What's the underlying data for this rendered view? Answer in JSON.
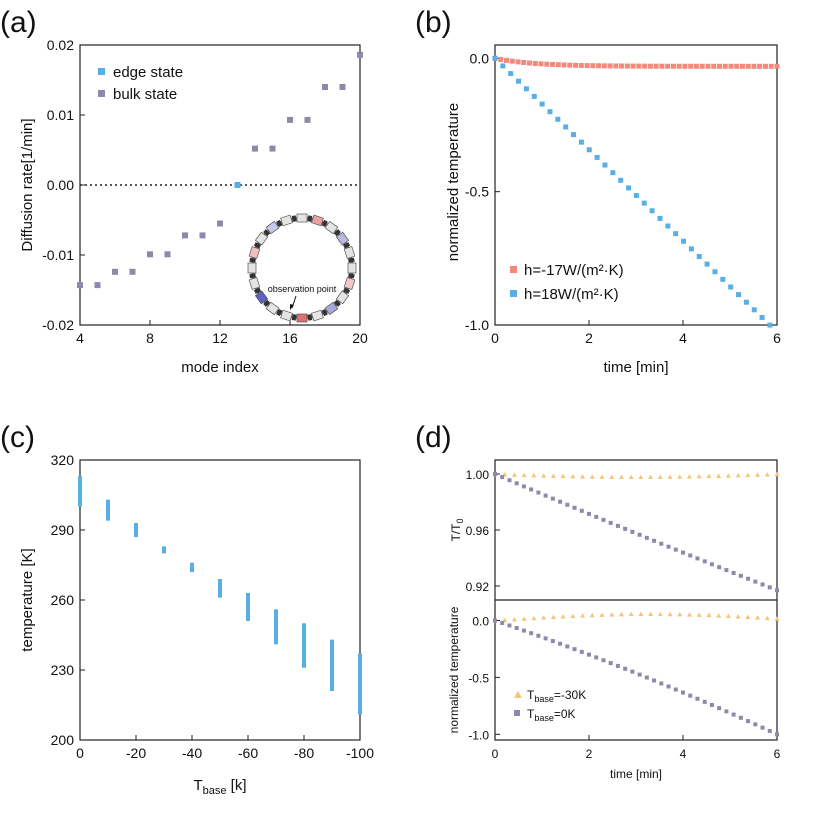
{
  "colors": {
    "blue": "#5aaee6",
    "purple": "#8e88ab",
    "salmon": "#f08a7d",
    "orange": "#f5c67a",
    "axis": "#222222"
  },
  "panels": {
    "a": "(a)",
    "b": "(b)",
    "c": "(c)",
    "d": "(d)"
  },
  "chart_data": [
    {
      "id": "a",
      "type": "scatter",
      "xlabel": "mode index",
      "ylabel": "Diffusion rate[1/min]",
      "xlim": [
        4,
        20
      ],
      "ylim": [
        -0.02,
        0.02
      ],
      "xticks": [
        "4",
        "8",
        "12",
        "16",
        "20"
      ],
      "yticks": [
        "-0.02",
        "-0.01",
        "0.00",
        "0.01",
        "0.02"
      ],
      "zero_line": "dotted",
      "series": [
        {
          "name": "edge state",
          "color": "#5aaee6",
          "x": [
            13
          ],
          "y": [
            0.0
          ]
        },
        {
          "name": "bulk state",
          "color": "#8e88ab",
          "x": [
            4,
            5,
            6,
            7,
            8,
            9,
            10,
            11,
            12,
            14,
            15,
            16,
            17,
            18,
            19,
            20
          ],
          "y": [
            -0.0143,
            -0.0143,
            -0.0124,
            -0.0124,
            -0.0099,
            -0.0099,
            -0.0072,
            -0.0072,
            -0.0055,
            0.0052,
            0.0052,
            0.0093,
            0.0093,
            0.014,
            0.014,
            0.0186
          ]
        }
      ],
      "inset": {
        "annotation": "observation point"
      }
    },
    {
      "id": "b",
      "type": "scatter",
      "xlabel": "time [min]",
      "ylabel": "normalized temperature",
      "xlim": [
        0,
        6
      ],
      "ylim": [
        -1.0,
        0.05
      ],
      "xticks": [
        "0",
        "2",
        "4",
        "6"
      ],
      "yticks": [
        "0.0",
        "-0.5",
        "-1.0"
      ],
      "series": [
        {
          "name": "h=-17W/(m²·K)",
          "color": "#f08a7d",
          "t_max": 6,
          "n": 50,
          "endpoint": -0.03
        },
        {
          "name": "h=18W/(m²·K)",
          "color": "#5aaee6",
          "t_max": 5.85,
          "n": 36,
          "slope": -0.171
        }
      ]
    },
    {
      "id": "c",
      "type": "bar",
      "xlabel": "T",
      "xlabel_sub": "base",
      "xlabel_tail": " [k]",
      "ylabel": "temperature [K]",
      "xlim": [
        0,
        -100
      ],
      "ylim": [
        200,
        320
      ],
      "xticks": [
        "0",
        "-20",
        "-40",
        "-60",
        "-80",
        "-100"
      ],
      "yticks": [
        "200",
        "230",
        "260",
        "290",
        "320"
      ],
      "categories": [
        0,
        -10,
        -20,
        -30,
        -40,
        -50,
        -60,
        -70,
        -80,
        -90,
        -100
      ],
      "low": [
        300,
        294,
        287,
        280,
        272,
        261,
        251,
        241,
        231,
        221,
        211
      ],
      "high": [
        313,
        303,
        293,
        283,
        276,
        269,
        263,
        256,
        250,
        243,
        237
      ]
    },
    {
      "id": "d-top",
      "type": "scatter",
      "ylabel": "T/T",
      "ylabel_sub": "0",
      "xlim": [
        0,
        6
      ],
      "ylim": [
        0.91,
        1.01
      ],
      "yticks": [
        "1.00",
        "0.96",
        "0.92"
      ],
      "series": [
        {
          "name": "Tbase=-30K",
          "color": "#f5c67a",
          "marker": "triangle",
          "n": 30,
          "t_max": 6,
          "endpoint": 0.998,
          "dip": 0.002
        },
        {
          "name": "Tbase=0K",
          "color": "#8e88ab",
          "marker": "square",
          "n": 40,
          "t_max": 6,
          "endpoint": 0.917
        }
      ]
    },
    {
      "id": "d-bottom",
      "type": "scatter",
      "xlabel": "time [min]",
      "ylabel": "normalized temperature",
      "xlim": [
        0,
        6
      ],
      "ylim": [
        -1.05,
        0.18
      ],
      "xticks": [
        "0",
        "2",
        "4",
        "6"
      ],
      "yticks": [
        "0.0",
        "-0.5",
        "-1.0"
      ],
      "series": [
        {
          "name": "T",
          "sub": "base",
          "tail": "=-30K",
          "color": "#f5c67a",
          "marker": "triangle",
          "n": 30,
          "t_max": 6,
          "peak": 0.06,
          "endpoint": 0.03
        },
        {
          "name": "T",
          "sub": "base",
          "tail": "=0K",
          "color": "#8e88ab",
          "marker": "square",
          "n": 40,
          "t_max": 6,
          "endpoint": -1.0
        }
      ]
    }
  ]
}
